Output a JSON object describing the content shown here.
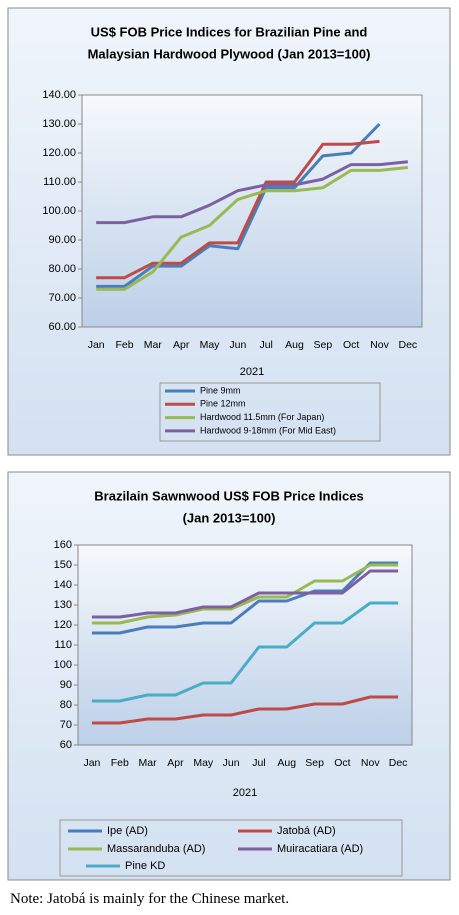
{
  "chart_data": [
    {
      "type": "line",
      "title": [
        "US$ FOB Price Indices for Brazilian Pine and",
        "Malaysian Hardwood Plywood (Jan 2013=100)"
      ],
      "x_label": "2021",
      "categories": [
        "Jan",
        "Feb",
        "Mar",
        "Apr",
        "May",
        "Jun",
        "Jul",
        "Aug",
        "Sep",
        "Oct",
        "Nov",
        "Dec"
      ],
      "ylim": [
        60,
        140
      ],
      "yticks": [
        {
          "value": 60,
          "label": "60.00"
        },
        {
          "value": 70,
          "label": "70.00"
        },
        {
          "value": 80,
          "label": "80.00"
        },
        {
          "value": 90,
          "label": "90.00"
        },
        {
          "value": 100,
          "label": "100.00"
        },
        {
          "value": 110,
          "label": "110.00"
        },
        {
          "value": 120,
          "label": "120.00"
        },
        {
          "value": 130,
          "label": "130.00"
        },
        {
          "value": 140,
          "label": "140.00"
        }
      ],
      "series": [
        {
          "name": "Pine 9mm",
          "color": "#4a7ebb",
          "values": [
            74,
            74,
            81,
            81,
            88,
            87,
            108,
            108,
            119,
            120,
            130,
            null
          ]
        },
        {
          "name": "Pine 12mm",
          "color": "#be4b48",
          "values": [
            77,
            77,
            82,
            82,
            89,
            89,
            110,
            110,
            123,
            123,
            124,
            null
          ]
        },
        {
          "name": "Hardwood 11.5mm (For Japan)",
          "color": "#98b954",
          "values": [
            73,
            73,
            79,
            91,
            95,
            104,
            107,
            107,
            108,
            114,
            114,
            115
          ]
        },
        {
          "name": "Hardwood 9-18mm (For Mid East)",
          "color": "#7d60a0",
          "values": [
            96,
            96,
            98,
            98,
            102,
            107,
            109,
            109,
            111,
            116,
            116,
            117
          ]
        }
      ]
    },
    {
      "type": "line",
      "title": [
        "Brazilain Sawnwood US$ FOB Price Indices",
        "(Jan 2013=100)"
      ],
      "x_label": "2021",
      "categories": [
        "Jan",
        "Feb",
        "Mar",
        "Apr",
        "May",
        "Jun",
        "Jul",
        "Aug",
        "Sep",
        "Oct",
        "Nov",
        "Dec"
      ],
      "ylim": [
        60,
        160
      ],
      "yticks": [
        60,
        70,
        80,
        90,
        100,
        110,
        120,
        130,
        140,
        150,
        160
      ],
      "series": [
        {
          "name": "Ipe (AD)",
          "color": "#4a7ebb",
          "values": [
            116,
            116,
            119,
            119,
            121,
            121,
            132,
            132,
            137,
            137,
            151,
            151
          ]
        },
        {
          "name": "Jatobá (AD)",
          "color": "#be4b48",
          "values": [
            71,
            71,
            73,
            73,
            75,
            75,
            78,
            78,
            80.5,
            80.5,
            84,
            84
          ]
        },
        {
          "name": "Massaranduba (AD)",
          "color": "#98b954",
          "values": [
            121,
            121,
            124,
            125,
            128,
            128,
            134,
            134,
            142,
            142,
            150,
            150
          ]
        },
        {
          "name": "Muiracatiara (AD)",
          "color": "#7d60a0",
          "values": [
            124,
            124,
            126,
            126,
            129,
            129,
            136,
            136,
            136,
            136,
            147,
            147
          ]
        },
        {
          "name": "Pine KD",
          "color": "#4bacc6",
          "values": [
            82,
            82,
            85,
            85,
            91,
            91,
            109,
            109,
            121,
            121,
            131,
            131
          ]
        }
      ]
    }
  ],
  "note": "Note: Jatobá is mainly for the Chinese market."
}
